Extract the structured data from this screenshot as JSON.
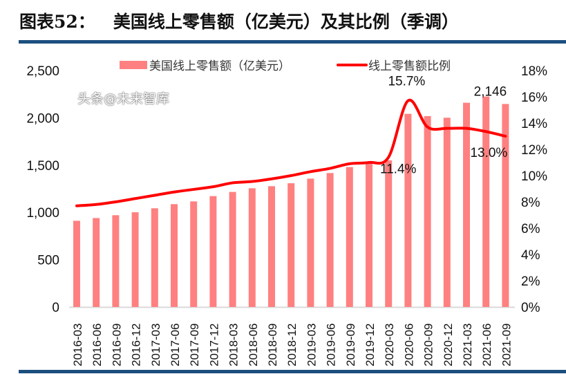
{
  "title": "图表52：   美国线上零售额（亿美元）及其比例（季调）",
  "watermark": "头条@未来智库",
  "chart_data": {
    "type": "bar+line",
    "categories": [
      "2016-03",
      "2016-06",
      "2016-09",
      "2016-12",
      "2017-03",
      "2017-06",
      "2017-09",
      "2017-12",
      "2018-03",
      "2018-06",
      "2018-09",
      "2018-12",
      "2019-03",
      "2019-06",
      "2019-09",
      "2019-12",
      "2020-03",
      "2020-06",
      "2020-09",
      "2020-12",
      "2021-03",
      "2021-06",
      "2021-09"
    ],
    "series": [
      {
        "name": "美国线上零售额（亿美元）",
        "type": "bar",
        "axis": "left",
        "color": "#ff8080",
        "values": [
          911,
          940,
          970,
          1001,
          1043,
          1087,
          1116,
          1172,
          1216,
          1255,
          1277,
          1308,
          1357,
          1416,
          1479,
          1520,
          1550,
          2042,
          2018,
          2001,
          2159,
          2225,
          2146
        ]
      },
      {
        "name": "线上零售额比例",
        "type": "line",
        "axis": "right",
        "color": "#ff0000",
        "values": [
          7.7,
          7.8,
          8.0,
          8.25,
          8.5,
          8.75,
          8.95,
          9.15,
          9.45,
          9.55,
          9.75,
          10.0,
          10.3,
          10.55,
          10.9,
          11.0,
          11.4,
          15.7,
          13.7,
          13.6,
          13.6,
          13.35,
          13.0
        ]
      }
    ],
    "data_labels": [
      {
        "series": 1,
        "index": 17,
        "text": "15.7%"
      },
      {
        "series": 1,
        "index": 16,
        "text": "11.4%"
      },
      {
        "series": 1,
        "index": 22,
        "text": "13.0%"
      },
      {
        "series": 0,
        "index": 22,
        "text": "2,146"
      }
    ],
    "y_left": {
      "range": [
        0,
        2500
      ],
      "ticks": [
        "0",
        "500",
        "1,000",
        "1,500",
        "2,000",
        "2,500"
      ]
    },
    "y_right": {
      "range": [
        0,
        18
      ],
      "ticks": [
        "0%",
        "2%",
        "4%",
        "6%",
        "8%",
        "10%",
        "12%",
        "14%",
        "16%",
        "18%"
      ]
    },
    "grid": false,
    "legend": "top"
  }
}
